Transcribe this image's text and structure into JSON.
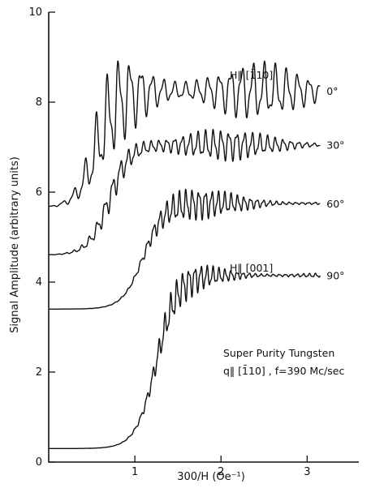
{
  "chart_data": {
    "type": "line",
    "xlabel": "300/H (Oe⁻¹)",
    "ylabel": "Signal Amplitude (arbitrary units)",
    "xlim": [
      0,
      3.6
    ],
    "ylim": [
      0,
      10
    ],
    "x_ticks": [
      1,
      2,
      3
    ],
    "x_tick_labels": [
      "1",
      "2",
      "3"
    ],
    "y_ticks": [
      0,
      2,
      4,
      6,
      8,
      10
    ],
    "y_tick_labels": [
      "0",
      "2",
      "4",
      "6",
      "8",
      "10"
    ],
    "series": [
      {
        "name": "0°",
        "x_start": 0.0,
        "x_end": 3.15,
        "baseline": 5.65,
        "asymptote": 8.25,
        "onset": 0.55,
        "amplitude": 1.2,
        "period": 0.13,
        "decay": 0.45
      },
      {
        "name": "30°",
        "x_start": 0.0,
        "x_end": 3.15,
        "baseline": 4.6,
        "asymptote": 7.05,
        "onset": 0.7,
        "amplitude": 0.75,
        "period": 0.09,
        "decay": 0.7
      },
      {
        "name": "60°",
        "x_start": 0.0,
        "x_end": 3.15,
        "baseline": 3.4,
        "asymptote": 5.75,
        "onset": 1.1,
        "amplitude": 0.55,
        "period": 0.075,
        "decay": 1.0
      },
      {
        "name": "90°",
        "x_start": 0.0,
        "x_end": 3.15,
        "baseline": 0.3,
        "asymptote": 4.15,
        "onset": 1.25,
        "amplitude": 0.45,
        "period": 0.07,
        "decay": 1.1
      }
    ],
    "annotations": {
      "top_direction": "H‖ [1̄10]",
      "bottom_direction": "H‖ [001]",
      "sample_line1": "Super Purity Tungsten",
      "sample_line2": "q‖ [1̄10] ,  f=390 Mc/sec"
    }
  }
}
